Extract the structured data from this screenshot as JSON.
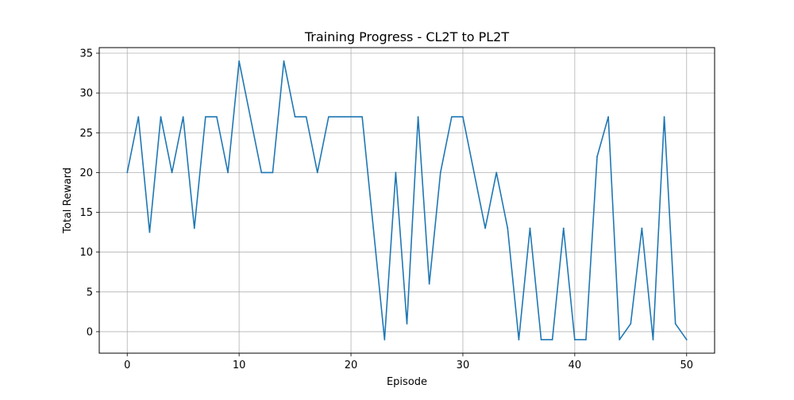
{
  "chart_data": {
    "type": "line",
    "title": "Training Progress - CL2T to PL2T",
    "xlabel": "Episode",
    "ylabel": "Total Reward",
    "xlim": [
      -2.5,
      52.5
    ],
    "ylim": [
      -2.7,
      35.7
    ],
    "xticks": [
      0,
      10,
      20,
      30,
      40,
      50
    ],
    "yticks": [
      0,
      5,
      10,
      15,
      20,
      25,
      30,
      35
    ],
    "grid": true,
    "line_color": "#1f77b4",
    "series": [
      {
        "x": [
          0,
          1,
          2,
          3,
          4,
          5,
          6,
          7,
          8,
          9,
          10,
          11,
          12,
          13,
          14,
          15,
          16,
          17,
          18,
          19,
          20,
          21,
          22,
          23,
          24,
          25,
          26,
          27,
          28,
          29,
          30,
          31,
          32,
          33,
          34,
          35,
          36,
          37,
          38,
          39,
          40,
          41,
          42,
          43,
          44,
          45,
          46,
          47,
          48,
          49,
          50
        ],
        "values": [
          20,
          27,
          12.5,
          27,
          20,
          27,
          13,
          27,
          27,
          20,
          34,
          27,
          20,
          20,
          34,
          27,
          27,
          20,
          27,
          27,
          27,
          27,
          13,
          -1,
          20,
          1,
          27,
          6,
          20,
          27,
          27,
          20,
          13,
          20,
          13,
          -1,
          13,
          -1,
          -1,
          13,
          -1,
          -1,
          22,
          27,
          -1,
          1,
          13,
          -1,
          27,
          1,
          -1
        ]
      }
    ]
  }
}
